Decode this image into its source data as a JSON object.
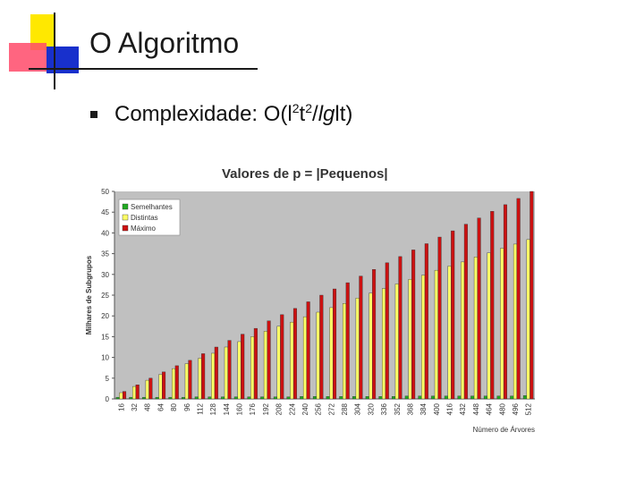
{
  "slide": {
    "title": "O Algoritmo",
    "bullet": {
      "prefix": "Complexidade: O(l",
      "sup1": "2",
      "mid": "t",
      "sup2": "2",
      "slash": "/",
      "lg": "lg",
      "suffix": "lt)"
    }
  },
  "colors": {
    "accent_yellow": "#ffe800",
    "accent_red": "#ff4a6a",
    "accent_blue": "#1830cc",
    "plot_bg": "#c0c0c0",
    "series_green": "#22aa22",
    "series_yellow": "#ffff66",
    "series_red": "#cc1111"
  },
  "chart_data": {
    "type": "bar",
    "title": "Valores de p = |Pequenos|",
    "xlabel": "Número de Árvores",
    "ylabel": "Milhares de Subgrupos",
    "ylim": [
      0,
      50
    ],
    "yticks": [
      0,
      5,
      10,
      15,
      20,
      25,
      30,
      35,
      40,
      45,
      50
    ],
    "grid": false,
    "legend_position": "top-left",
    "categories": [
      "16",
      "32",
      "48",
      "64",
      "80",
      "96",
      "112",
      "128",
      "144",
      "160",
      "176",
      "192",
      "208",
      "224",
      "240",
      "256",
      "272",
      "288",
      "304",
      "320",
      "336",
      "352",
      "368",
      "384",
      "400",
      "416",
      "432",
      "448",
      "464",
      "480",
      "496",
      "512"
    ],
    "series": [
      {
        "name": "Semelhantes",
        "color": "#22aa22",
        "values": [
          0.4,
          0.4,
          0.4,
          0.4,
          0.4,
          0.4,
          0.5,
          0.5,
          0.5,
          0.5,
          0.5,
          0.5,
          0.5,
          0.5,
          0.6,
          0.6,
          0.6,
          0.6,
          0.6,
          0.6,
          0.6,
          0.6,
          0.7,
          0.7,
          0.7,
          0.7,
          0.7,
          0.7,
          0.7,
          0.7,
          0.7,
          0.8
        ]
      },
      {
        "name": "Distintas",
        "color": "#ffff66",
        "values": [
          1.5,
          3.0,
          4.5,
          5.9,
          7.3,
          8.5,
          9.8,
          11.0,
          12.5,
          13.8,
          15.0,
          16.3,
          17.5,
          18.5,
          19.8,
          20.9,
          22.0,
          23.0,
          24.3,
          25.5,
          26.6,
          27.7,
          28.8,
          29.8,
          31.0,
          32.0,
          33.0,
          34.2,
          35.2,
          36.3,
          37.3,
          38.4
        ]
      },
      {
        "name": "Máximo",
        "color": "#cc1111",
        "values": [
          1.8,
          3.4,
          5.0,
          6.5,
          8.0,
          9.3,
          10.9,
          12.5,
          14.1,
          15.6,
          17.0,
          18.8,
          20.3,
          21.8,
          23.4,
          25.0,
          26.5,
          28.0,
          29.6,
          31.2,
          32.8,
          34.3,
          35.9,
          37.4,
          39.0,
          40.5,
          42.1,
          43.6,
          45.2,
          46.8,
          48.3,
          50.0
        ]
      }
    ]
  }
}
